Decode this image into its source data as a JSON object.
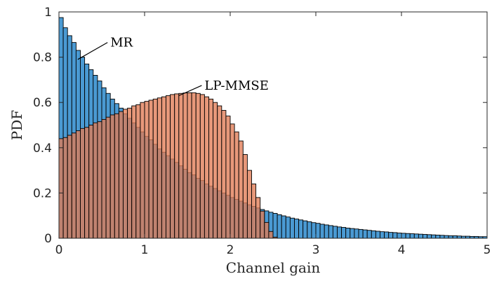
{
  "chart_data": {
    "type": "bar",
    "xlabel": "Channel gain",
    "ylabel": "PDF",
    "xlim": [
      0,
      5
    ],
    "ylim": [
      0,
      1
    ],
    "xticks": [
      "0",
      "1",
      "2",
      "3",
      "4",
      "5"
    ],
    "yticks": [
      "0",
      "0.2",
      "0.4",
      "0.6",
      "0.8",
      "1"
    ],
    "grid": false,
    "bin_width": 0.05,
    "series": [
      {
        "name": "MR",
        "color": "#4a9ad3",
        "values": [
          0.975,
          0.93,
          0.895,
          0.865,
          0.83,
          0.8,
          0.77,
          0.745,
          0.72,
          0.695,
          0.665,
          0.64,
          0.615,
          0.595,
          0.575,
          0.55,
          0.53,
          0.51,
          0.49,
          0.47,
          0.45,
          0.435,
          0.415,
          0.395,
          0.38,
          0.365,
          0.35,
          0.335,
          0.32,
          0.305,
          0.29,
          0.28,
          0.265,
          0.255,
          0.24,
          0.23,
          0.22,
          0.21,
          0.2,
          0.19,
          0.18,
          0.172,
          0.164,
          0.156,
          0.148,
          0.141,
          0.134,
          0.127,
          0.121,
          0.115,
          0.11,
          0.104,
          0.099,
          0.094,
          0.089,
          0.085,
          0.081,
          0.077,
          0.073,
          0.069,
          0.066,
          0.062,
          0.059,
          0.056,
          0.053,
          0.05,
          0.048,
          0.045,
          0.043,
          0.041,
          0.039,
          0.037,
          0.035,
          0.033,
          0.031,
          0.029,
          0.028,
          0.026,
          0.025,
          0.023,
          0.022,
          0.021,
          0.02,
          0.019,
          0.018,
          0.017,
          0.016,
          0.015,
          0.014,
          0.013,
          0.012,
          0.011,
          0.011,
          0.01,
          0.009,
          0.009,
          0.008,
          0.008,
          0.007,
          0.007
        ]
      },
      {
        "name": "LP-MMSE",
        "color": "#e07b54",
        "values": [
          0.44,
          0.445,
          0.455,
          0.465,
          0.475,
          0.485,
          0.49,
          0.5,
          0.51,
          0.515,
          0.525,
          0.535,
          0.545,
          0.55,
          0.56,
          0.57,
          0.575,
          0.585,
          0.59,
          0.6,
          0.605,
          0.61,
          0.615,
          0.62,
          0.625,
          0.63,
          0.635,
          0.638,
          0.64,
          0.642,
          0.643,
          0.643,
          0.64,
          0.635,
          0.625,
          0.615,
          0.6,
          0.585,
          0.565,
          0.54,
          0.505,
          0.47,
          0.43,
          0.37,
          0.3,
          0.24,
          0.18,
          0.12,
          0.07,
          0.03,
          0.005
        ]
      }
    ],
    "annotations": [
      {
        "text": "MR",
        "x": 0.22,
        "y": 0.79,
        "label_x": 0.6,
        "label_y": 0.865
      },
      {
        "text": "LP-MMSE",
        "x": 1.4,
        "y": 0.63,
        "label_x": 1.7,
        "label_y": 0.675
      }
    ]
  }
}
